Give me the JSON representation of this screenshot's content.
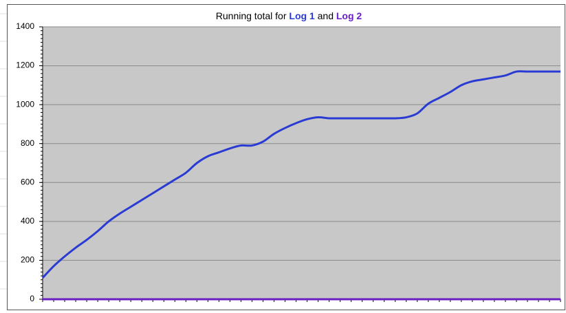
{
  "chart_data": {
    "type": "line",
    "title": [
      "Running total for",
      "and"
    ],
    "categories": [
      null,
      null,
      null,
      null,
      null,
      null,
      null,
      null,
      null,
      null,
      null,
      null,
      null,
      null,
      null,
      null,
      null,
      null,
      null,
      null,
      null,
      null,
      null,
      null,
      null,
      null,
      null,
      null,
      null,
      null,
      null,
      null,
      null,
      null,
      null,
      null,
      null,
      null,
      null,
      null,
      null,
      null,
      null,
      null,
      null,
      null,
      null,
      null
    ],
    "series": [
      {
        "name": "Log 1",
        "color": "#2a3bd4",
        "values": [
          110,
          170,
          220,
          265,
          305,
          350,
          400,
          440,
          475,
          510,
          545,
          580,
          615,
          650,
          700,
          735,
          755,
          775,
          790,
          790,
          810,
          850,
          880,
          905,
          925,
          935,
          930,
          930,
          930,
          930,
          930,
          930,
          930,
          935,
          955,
          1005,
          1035,
          1065,
          1100,
          1120,
          1130,
          1140,
          1150,
          1170,
          1170,
          1170,
          1170,
          1170
        ]
      },
      {
        "name": "Log 2",
        "color": "#6a1fc4",
        "values": [
          0,
          0,
          0,
          0,
          0,
          0,
          0,
          0,
          0,
          0,
          0,
          0,
          0,
          0,
          0,
          0,
          0,
          0,
          0,
          0,
          0,
          0,
          0,
          0,
          0,
          0,
          0,
          0,
          0,
          0,
          0,
          0,
          0,
          0,
          0,
          0,
          0,
          0,
          0,
          0,
          0,
          0,
          0,
          0,
          0,
          0,
          0,
          0
        ]
      }
    ],
    "ylim": [
      0,
      1400
    ],
    "yticks": [
      0,
      200,
      400,
      600,
      800,
      1000,
      1200,
      1400
    ],
    "grid": true
  }
}
